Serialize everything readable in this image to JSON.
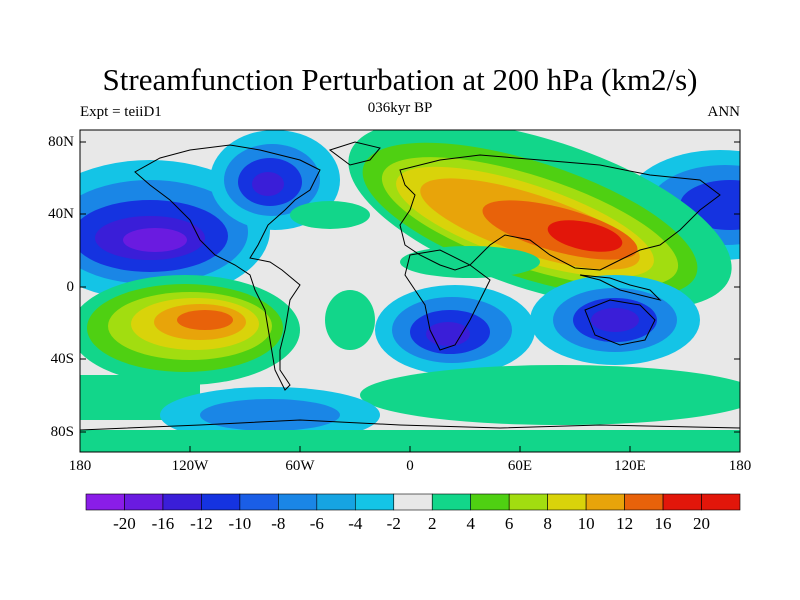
{
  "title": "Streamfunction Perturbation at 200 hPa (km2/s)",
  "subtitle_left": "Expt = teiiD1",
  "subtitle_center": "036kyr BP",
  "subtitle_right": "ANN",
  "lat_ticks": [
    "80N",
    "40N",
    "0",
    "40S",
    "80S"
  ],
  "lon_ticks": [
    "180",
    "120W",
    "60W",
    "0",
    "60E",
    "120E",
    "180"
  ],
  "colorbar": {
    "labels": [
      "-20",
      "-16",
      "-12",
      "-10",
      "-8",
      "-6",
      "-4",
      "-2",
      "2",
      "4",
      "6",
      "8",
      "10",
      "12",
      "16",
      "20"
    ],
    "colors": [
      "#8a1de8",
      "#6a1be0",
      "#3a1ed8",
      "#1533e0",
      "#1a5ee6",
      "#1a86e6",
      "#16a4e2",
      "#14c4e6",
      "#e8e8e8",
      "#12d68a",
      "#4fd012",
      "#a2dd10",
      "#d9d30a",
      "#e8a40a",
      "#e8620a",
      "#e2160a"
    ]
  }
}
